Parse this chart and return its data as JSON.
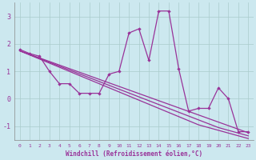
{
  "x_data": [
    0,
    1,
    2,
    3,
    4,
    5,
    6,
    7,
    8,
    9,
    10,
    11,
    12,
    13,
    14,
    15,
    16,
    17,
    18,
    19,
    20,
    21,
    22,
    23
  ],
  "line1": [
    1.8,
    1.65,
    1.55,
    1.0,
    0.55,
    0.55,
    0.2,
    0.2,
    0.2,
    0.9,
    1.0,
    2.4,
    2.55,
    1.4,
    3.2,
    3.2,
    1.1,
    -0.45,
    -0.35,
    -0.35,
    0.4,
    0.0,
    -1.2,
    -1.2
  ],
  "reg1": [
    1.75,
    1.62,
    1.49,
    1.36,
    1.23,
    1.1,
    0.97,
    0.84,
    0.71,
    0.58,
    0.45,
    0.32,
    0.19,
    0.06,
    -0.07,
    -0.2,
    -0.33,
    -0.46,
    -0.59,
    -0.72,
    -0.85,
    -0.98,
    -1.11,
    -1.24
  ],
  "reg2": [
    1.75,
    1.61,
    1.47,
    1.33,
    1.19,
    1.05,
    0.91,
    0.77,
    0.63,
    0.49,
    0.35,
    0.21,
    0.07,
    -0.07,
    -0.21,
    -0.35,
    -0.49,
    -0.63,
    -0.77,
    -0.91,
    -1.05,
    -1.15,
    -1.25,
    -1.35
  ],
  "reg3": [
    1.75,
    1.6,
    1.45,
    1.3,
    1.15,
    1.0,
    0.85,
    0.7,
    0.55,
    0.4,
    0.25,
    0.1,
    -0.05,
    -0.2,
    -0.35,
    -0.5,
    -0.65,
    -0.8,
    -0.95,
    -1.05,
    -1.15,
    -1.25,
    -1.35,
    -1.45
  ],
  "color": "#993399",
  "bg_color": "#cce8ef",
  "grid_color": "#aacccc",
  "xlabel": "Windchill (Refroidissement éolien,°C)",
  "ylim": [
    -1.5,
    3.5
  ],
  "xlim": [
    -0.5,
    23.5
  ],
  "yticks": [
    -1,
    0,
    1,
    2,
    3
  ],
  "xticks": [
    0,
    1,
    2,
    3,
    4,
    5,
    6,
    7,
    8,
    9,
    10,
    11,
    12,
    13,
    14,
    15,
    16,
    17,
    18,
    19,
    20,
    21,
    22,
    23
  ]
}
